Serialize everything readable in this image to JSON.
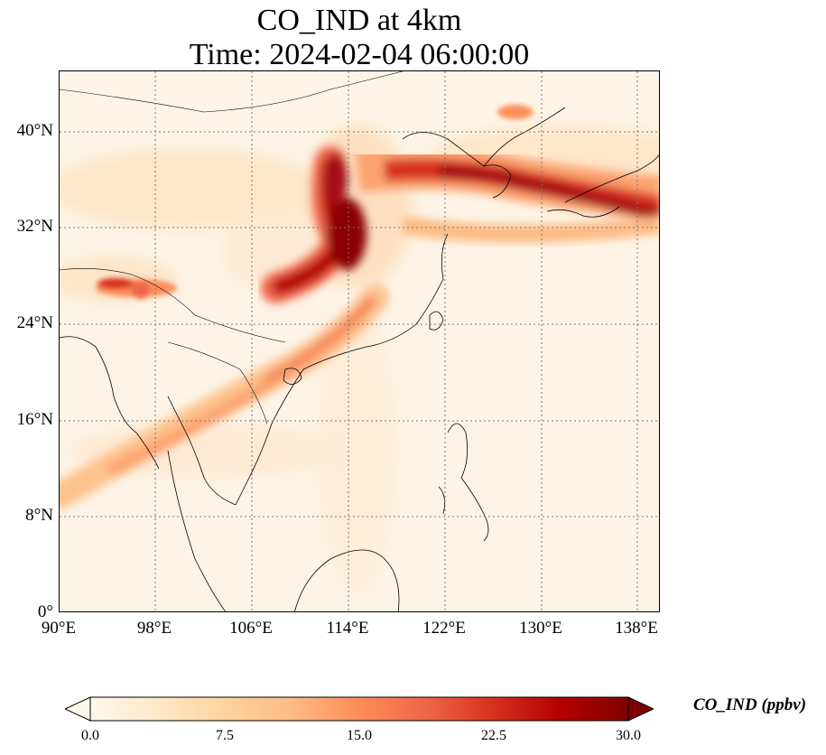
{
  "title": {
    "line1": "CO_IND at 4km",
    "line2": "Time: 2024-02-04 06:00:00"
  },
  "map": {
    "variable": "CO_IND",
    "height": "4km",
    "lon_range": [
      90,
      139
    ],
    "lat_range": [
      0,
      45
    ],
    "gridlines": "dotted",
    "lat_ticks": [
      "40°N",
      "32°N",
      "24°N",
      "16°N",
      "8°N",
      "0°"
    ],
    "lon_ticks": [
      "90°E",
      "98°E",
      "106°E",
      "114°E",
      "122°E",
      "130°E",
      "138°E"
    ]
  },
  "colorbar": {
    "label": "CO_IND (ppbv)",
    "ticks": [
      "0.0",
      "7.5",
      "15.0",
      "22.5",
      "30.0"
    ],
    "min": 0,
    "max": 30,
    "extend": "both",
    "colormap": "OrRd",
    "colors": [
      "#fff7ec",
      "#fee8c8",
      "#fdd49e",
      "#fdbb84",
      "#fc8d59",
      "#ef6548",
      "#d7301f",
      "#b30000",
      "#7f0000"
    ]
  }
}
